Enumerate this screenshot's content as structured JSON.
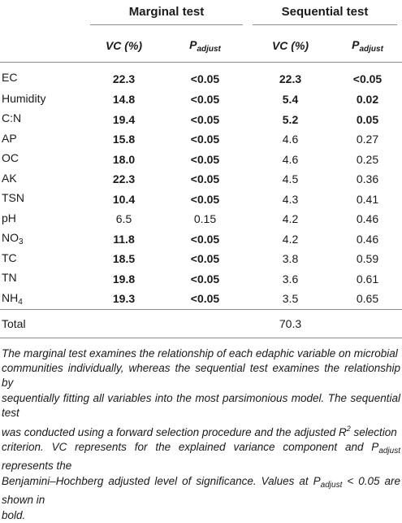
{
  "header": {
    "group_marginal": "Marginal test",
    "group_sequential": "Sequential test",
    "col_vc": "VC (%)",
    "col_p_main": "P",
    "col_p_sub": "adjust"
  },
  "rows": [
    {
      "var": "EC",
      "sub": "",
      "m_vc": "22.3",
      "m_p": "<0.05",
      "s_vc": "22.3",
      "s_p": "<0.05",
      "m_bold": true,
      "s_bold": true
    },
    {
      "var": "Humidity",
      "sub": "",
      "m_vc": "14.8",
      "m_p": "<0.05",
      "s_vc": "5.4",
      "s_p": "0.02",
      "m_bold": true,
      "s_bold": true
    },
    {
      "var": "C:N",
      "sub": "",
      "m_vc": "19.4",
      "m_p": "<0.05",
      "s_vc": "5.2",
      "s_p": "0.05",
      "m_bold": true,
      "s_bold": true
    },
    {
      "var": "AP",
      "sub": "",
      "m_vc": "15.8",
      "m_p": "<0.05",
      "s_vc": "4.6",
      "s_p": "0.27",
      "m_bold": true,
      "s_bold": false
    },
    {
      "var": "OC",
      "sub": "",
      "m_vc": "18.0",
      "m_p": "<0.05",
      "s_vc": "4.6",
      "s_p": "0.25",
      "m_bold": true,
      "s_bold": false
    },
    {
      "var": "AK",
      "sub": "",
      "m_vc": "22.3",
      "m_p": "<0.05",
      "s_vc": "4.5",
      "s_p": "0.36",
      "m_bold": true,
      "s_bold": false
    },
    {
      "var": "TSN",
      "sub": "",
      "m_vc": "10.4",
      "m_p": "<0.05",
      "s_vc": "4.3",
      "s_p": "0.41",
      "m_bold": true,
      "s_bold": false
    },
    {
      "var": "pH",
      "sub": "",
      "m_vc": "6.5",
      "m_p": "0.15",
      "s_vc": "4.2",
      "s_p": "0.46",
      "m_bold": false,
      "s_bold": false
    },
    {
      "var": "NO",
      "sub": "3",
      "m_vc": "11.8",
      "m_p": "<0.05",
      "s_vc": "4.2",
      "s_p": "0.46",
      "m_bold": true,
      "s_bold": false
    },
    {
      "var": "TC",
      "sub": "",
      "m_vc": "18.5",
      "m_p": "<0.05",
      "s_vc": "3.8",
      "s_p": "0.59",
      "m_bold": true,
      "s_bold": false
    },
    {
      "var": "TN",
      "sub": "",
      "m_vc": "19.8",
      "m_p": "<0.05",
      "s_vc": "3.6",
      "s_p": "0.61",
      "m_bold": true,
      "s_bold": false
    },
    {
      "var": "NH",
      "sub": "4",
      "m_vc": "19.3",
      "m_p": "<0.05",
      "s_vc": "3.5",
      "s_p": "0.65",
      "m_bold": true,
      "s_bold": false
    }
  ],
  "total": {
    "label": "Total",
    "value": "70.3"
  },
  "footnote": {
    "l1": "The marginal test examines the relationship of each edaphic variable on microbial",
    "l2": "communities individually, whereas the sequential test examines the relationship by",
    "l3": "sequentially fitting all variables into the most parsimonious model. The sequential test",
    "l4_a": "was conducted using a forward selection procedure and the adjusted R",
    "l4_sup": "2",
    "l4_b": " selection",
    "l5_a": "criterion. VC represents for the explained variance component and P",
    "l5_sub": "adjust",
    "l5_b": " represents the",
    "l6_a": "Benjamini–Hochberg adjusted level of significance. Values at P",
    "l6_sub": "adjust",
    "l6_b": " < 0.05 are shown in",
    "l7": "bold."
  }
}
